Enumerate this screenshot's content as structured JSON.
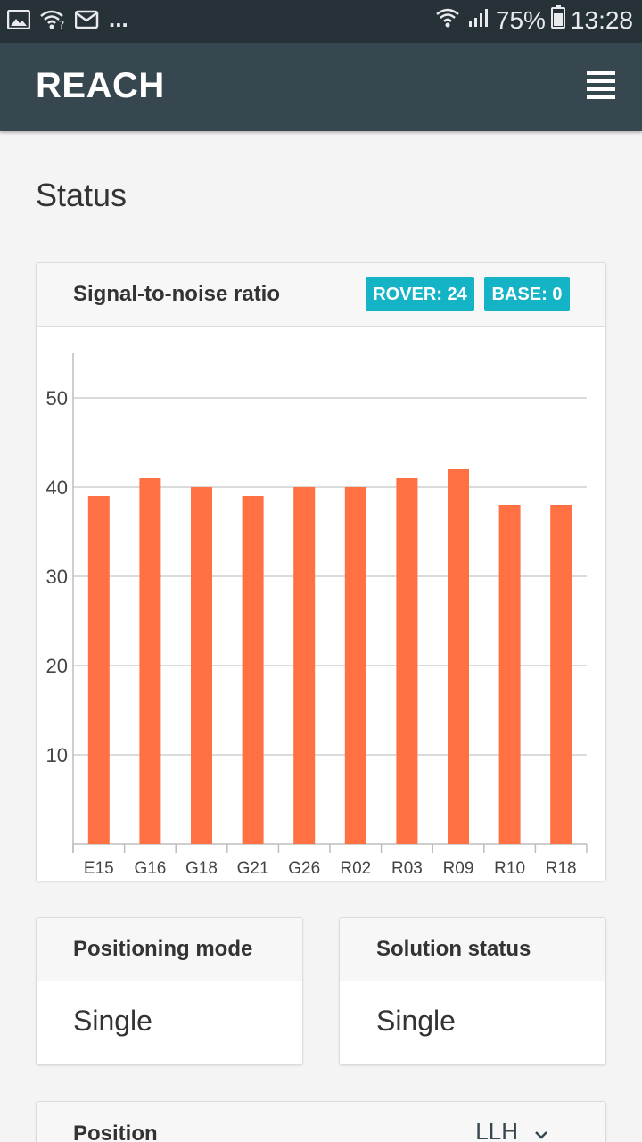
{
  "status_bar": {
    "overflow": "...",
    "battery": "75%",
    "time": "13:28",
    "left_icons": [
      "image-icon",
      "wifi-question-icon",
      "mail-icon"
    ],
    "right_icons": [
      "wifi-icon",
      "signal-icon",
      "battery-icon"
    ]
  },
  "app_bar": {
    "brand": "REACH",
    "menu_icon": "hamburger-menu-icon"
  },
  "page": {
    "title": "Status"
  },
  "snr_card": {
    "title": "Signal-to-noise ratio",
    "rover_badge": "ROVER: 24",
    "base_badge": "BASE: 0"
  },
  "chart_data": {
    "type": "bar",
    "categories": [
      "E15",
      "G16",
      "G18",
      "G21",
      "G26",
      "R02",
      "R03",
      "R09",
      "R10",
      "R18"
    ],
    "values": [
      39,
      41,
      40,
      39,
      40,
      40,
      41,
      42,
      38,
      38
    ],
    "yticks": [
      10,
      20,
      30,
      40,
      50
    ],
    "ylim": [
      0,
      55
    ],
    "grid": true,
    "bar_color": "#ff7043",
    "title": "",
    "xlabel": "",
    "ylabel": ""
  },
  "positioning_card": {
    "title": "Positioning mode",
    "value": "Single"
  },
  "solution_card": {
    "title": "Solution status",
    "value": "Single"
  },
  "position_card": {
    "title": "Position",
    "select_value": "LLH",
    "select_icon": "chevron-down-icon"
  },
  "colors": {
    "status_bar": "#263238",
    "app_bar": "#37474f",
    "accent": "#14b3c6",
    "bar": "#ff7043",
    "background": "#f4f4f4"
  }
}
